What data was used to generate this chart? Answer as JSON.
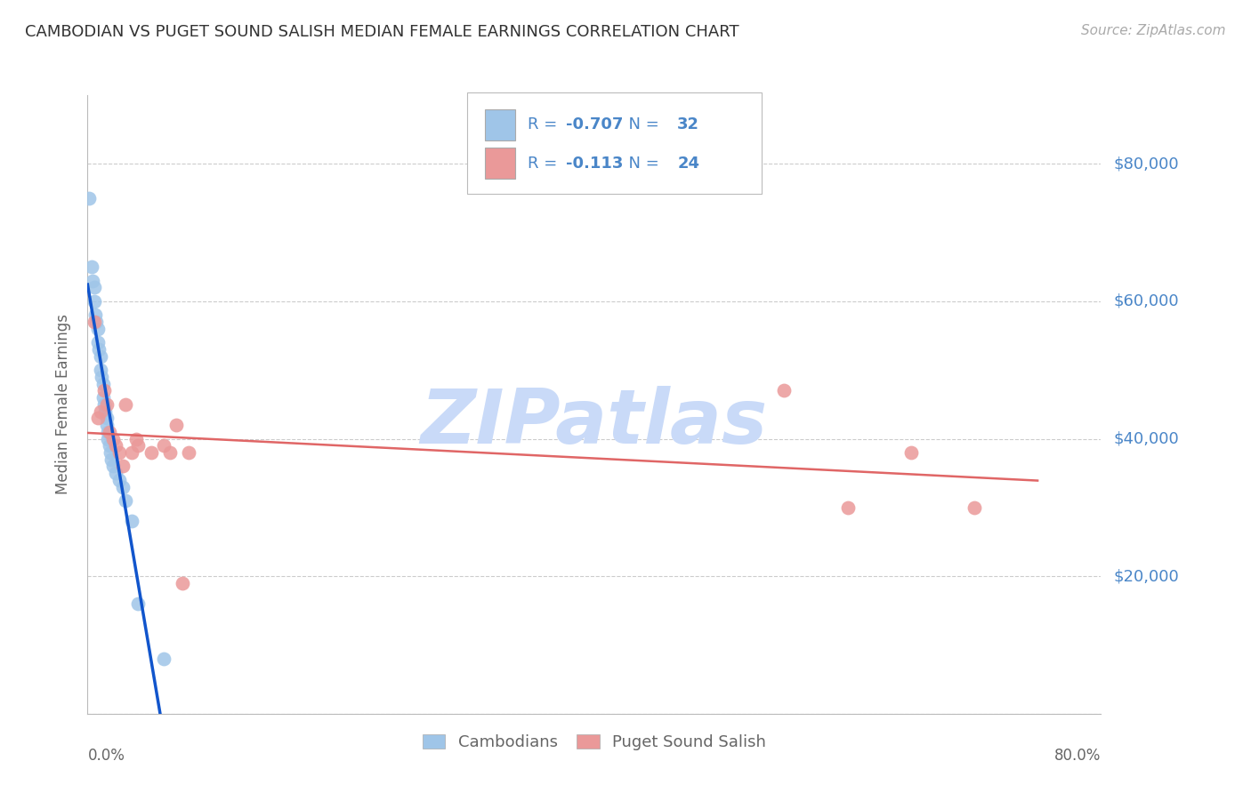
{
  "title": "CAMBODIAN VS PUGET SOUND SALISH MEDIAN FEMALE EARNINGS CORRELATION CHART",
  "source": "Source: ZipAtlas.com",
  "ylabel": "Median Female Earnings",
  "y_tick_labels": [
    "$20,000",
    "$40,000",
    "$60,000",
    "$80,000"
  ],
  "y_tick_values": [
    20000,
    40000,
    60000,
    80000
  ],
  "ylim": [
    0,
    90000
  ],
  "xlim": [
    0.0,
    0.8
  ],
  "cambodian_R": "-0.707",
  "cambodian_N": "32",
  "salish_R": "-0.113",
  "salish_N": "24",
  "cambodian_color": "#9fc5e8",
  "salish_color": "#ea9999",
  "cambodian_line_color": "#1155cc",
  "salish_line_color": "#e06666",
  "background_color": "#ffffff",
  "grid_color": "#cccccc",
  "watermark_text": "ZIPatlas",
  "watermark_color": "#c9daf8",
  "label_color": "#4a86c8",
  "text_color": "#666666",
  "legend_text_color": "#4a86c8",
  "cambodian_x": [
    0.001,
    0.003,
    0.004,
    0.005,
    0.005,
    0.006,
    0.007,
    0.008,
    0.008,
    0.009,
    0.01,
    0.01,
    0.011,
    0.012,
    0.012,
    0.013,
    0.014,
    0.015,
    0.015,
    0.016,
    0.016,
    0.017,
    0.018,
    0.019,
    0.02,
    0.022,
    0.025,
    0.028,
    0.03,
    0.035,
    0.04,
    0.06
  ],
  "cambodian_y": [
    75000,
    65000,
    63000,
    62000,
    60000,
    58000,
    57000,
    56000,
    54000,
    53000,
    52000,
    50000,
    49000,
    48000,
    46000,
    45000,
    44000,
    43000,
    42000,
    41000,
    40000,
    39000,
    38000,
    37000,
    36000,
    35000,
    34000,
    33000,
    31000,
    28000,
    16000,
    8000
  ],
  "salish_x": [
    0.005,
    0.008,
    0.01,
    0.013,
    0.015,
    0.017,
    0.02,
    0.022,
    0.025,
    0.028,
    0.03,
    0.035,
    0.038,
    0.04,
    0.05,
    0.06,
    0.065,
    0.07,
    0.075,
    0.08,
    0.55,
    0.6,
    0.65,
    0.7
  ],
  "salish_y": [
    57000,
    43000,
    44000,
    47000,
    45000,
    41000,
    40000,
    39000,
    38000,
    36000,
    45000,
    38000,
    40000,
    39000,
    38000,
    39000,
    38000,
    42000,
    19000,
    38000,
    47000,
    30000,
    38000,
    30000
  ]
}
